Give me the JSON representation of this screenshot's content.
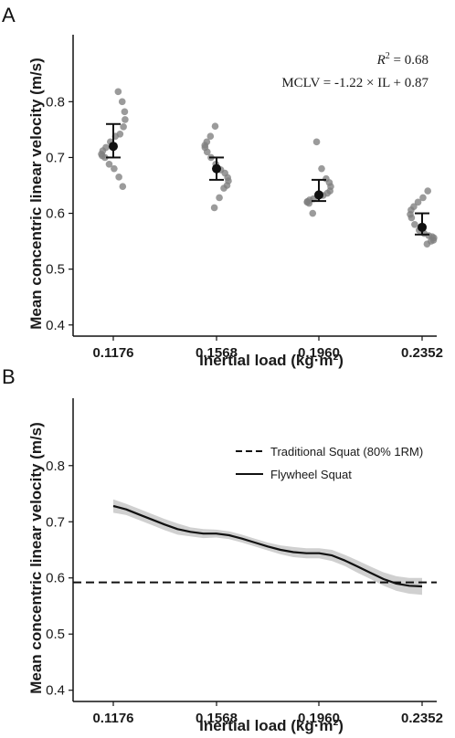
{
  "chart_data": [
    {
      "panel_label": "A",
      "type": "scatter",
      "ylabel": "Mean concentric linear velocity (m/s)",
      "xlabel": "Inertial load (kg·m²)",
      "categories": [
        "0.1176",
        "0.1568",
        "0.1960",
        "0.2352"
      ],
      "y_ticks": [
        "0.4",
        "0.5",
        "0.6",
        "0.7",
        "0.8"
      ],
      "ylim": [
        0.38,
        0.92
      ],
      "annotation_r2_symbol": "R",
      "annotation_r2_sup": "2",
      "annotation_r2_value": " = 0.68",
      "annotation_equation": "MCLV = -1.22 × IL + 0.87",
      "points": [
        [
          0.818,
          0.8,
          0.782,
          0.768,
          0.755,
          0.742,
          0.738,
          0.728,
          0.718,
          0.712,
          0.706,
          0.703,
          0.7,
          0.688,
          0.68,
          0.665,
          0.648
        ],
        [
          0.756,
          0.738,
          0.728,
          0.722,
          0.718,
          0.71,
          0.7,
          0.688,
          0.678,
          0.672,
          0.664,
          0.658,
          0.65,
          0.645,
          0.628,
          0.61
        ],
        [
          0.728,
          0.68,
          0.662,
          0.655,
          0.648,
          0.64,
          0.636,
          0.632,
          0.63,
          0.626,
          0.624,
          0.621,
          0.62,
          0.618,
          0.6
        ],
        [
          0.64,
          0.628,
          0.62,
          0.612,
          0.606,
          0.598,
          0.592,
          0.58,
          0.57,
          0.564,
          0.56,
          0.558,
          0.556,
          0.552,
          0.55,
          0.545
        ]
      ],
      "means": [
        0.72,
        0.68,
        0.633,
        0.575
      ],
      "ci_upper": [
        0.76,
        0.7,
        0.66,
        0.6
      ],
      "ci_lower": [
        0.7,
        0.66,
        0.622,
        0.562
      ]
    },
    {
      "panel_label": "B",
      "type": "line",
      "ylabel": "Mean concentric linear velocity (m/s)",
      "xlabel": "Inertial load (kg·m²)",
      "categories": [
        "0.1176",
        "0.1568",
        "0.1960",
        "0.2352"
      ],
      "y_ticks": [
        "0.4",
        "0.5",
        "0.6",
        "0.7",
        "0.8"
      ],
      "ylim": [
        0.38,
        0.92
      ],
      "legend_position": "top-right",
      "series": [
        {
          "name": "Traditional Squat (80% 1RM)",
          "style": "dashed",
          "value": 0.592
        },
        {
          "name": "Flywheel Squat",
          "style": "solid",
          "x": [
            0.1176,
            0.1225,
            0.1274,
            0.1323,
            0.1372,
            0.1421,
            0.147,
            0.1519,
            0.1568,
            0.1617,
            0.1666,
            0.1715,
            0.1764,
            0.1813,
            0.1862,
            0.1911,
            0.196,
            0.2009,
            0.2058,
            0.2107,
            0.2156,
            0.2205,
            0.2254,
            0.2303,
            0.2352
          ],
          "y": [
            0.728,
            0.722,
            0.713,
            0.704,
            0.695,
            0.687,
            0.682,
            0.679,
            0.679,
            0.676,
            0.67,
            0.663,
            0.656,
            0.65,
            0.646,
            0.644,
            0.644,
            0.64,
            0.631,
            0.62,
            0.609,
            0.598,
            0.59,
            0.586,
            0.585
          ],
          "band_upper": [
            0.74,
            0.732,
            0.723,
            0.714,
            0.705,
            0.697,
            0.69,
            0.687,
            0.686,
            0.683,
            0.677,
            0.67,
            0.663,
            0.658,
            0.655,
            0.653,
            0.653,
            0.65,
            0.641,
            0.631,
            0.62,
            0.61,
            0.603,
            0.6,
            0.6
          ],
          "band_lower": [
            0.716,
            0.712,
            0.703,
            0.694,
            0.685,
            0.677,
            0.674,
            0.671,
            0.672,
            0.669,
            0.663,
            0.656,
            0.649,
            0.642,
            0.637,
            0.635,
            0.635,
            0.63,
            0.621,
            0.609,
            0.598,
            0.586,
            0.577,
            0.572,
            0.57
          ]
        }
      ]
    }
  ],
  "colors": {
    "points": "#7f7f7f",
    "mean": "#111111",
    "band": "#d0d0d0",
    "line": "#111111"
  }
}
